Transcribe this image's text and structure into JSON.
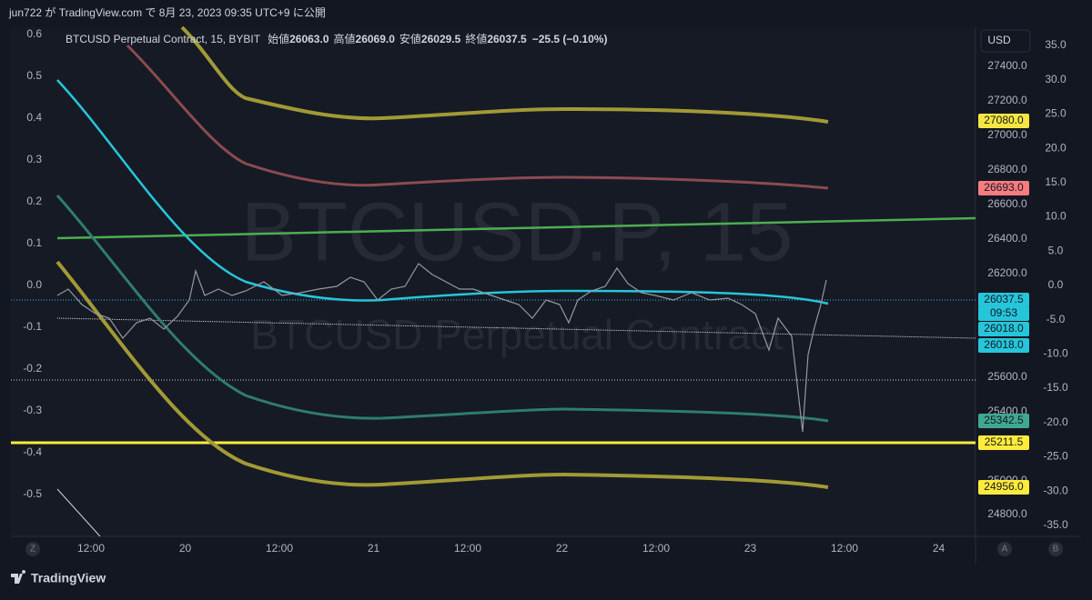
{
  "header": {
    "text": "jun722 が TradingView.com で 8月 23, 2023 09:35 UTC+9 に公開"
  },
  "legend": {
    "symbol": "BTCUSD Perpetual Contract, 15, BYBIT",
    "open_label": "始値",
    "open": "26063.0",
    "high_label": "高値",
    "high": "26069.0",
    "low_label": "安値",
    "low": "26029.5",
    "close_label": "終値",
    "close": "26037.5",
    "change": "−25.5 (−0.10%)"
  },
  "watermark": {
    "title": "BTCUSD.P, 15",
    "subtitle": "BTCUSD Perpetual Contract"
  },
  "currency_button": "USD",
  "left_axis": [
    "0.6",
    "0.5",
    "0.4",
    "0.3",
    "0.2",
    "0.1",
    "0.0",
    "-0.1",
    "-0.2",
    "-0.3",
    "-0.4",
    "-0.5"
  ],
  "price_axis": [
    "27400.0",
    "27200.0",
    "27000.0",
    "26800.0",
    "26600.0",
    "26400.0",
    "26200.0",
    "25600.0",
    "25400.0",
    "25000.0",
    "24800.0"
  ],
  "right_axis": [
    "35.0",
    "30.0",
    "25.0",
    "20.0",
    "15.0",
    "10.0",
    "5.0",
    "0.0",
    "-5.0",
    "-10.0",
    "-15.0",
    "-20.0",
    "-25.0",
    "-30.0",
    "-35.0"
  ],
  "time_axis": [
    "12:00",
    "20",
    "12:00",
    "21",
    "12:00",
    "22",
    "12:00",
    "23",
    "12:00",
    "24"
  ],
  "price_tags": [
    "27080.0",
    "26693.0",
    "26037.5",
    "09:53",
    "26018.0",
    "26018.0",
    "25342.5",
    "25211.5",
    "24956.0"
  ],
  "corner_buttons": [
    "Z",
    "A",
    "B"
  ],
  "footer": {
    "logo": "TradingView"
  }
}
